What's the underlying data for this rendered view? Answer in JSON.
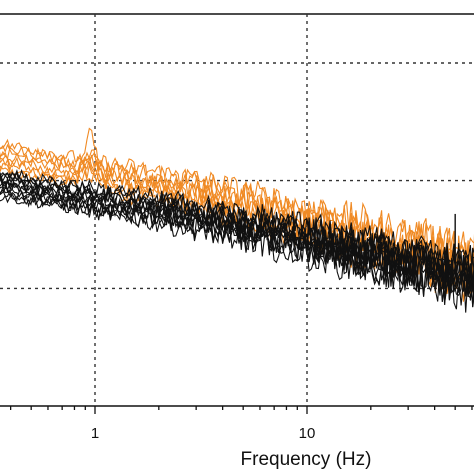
{
  "chart_data": {
    "type": "line",
    "title": "",
    "xlabel": "Frequency (Hz)",
    "ylabel": "",
    "x_scale": "log",
    "xlim": [
      0.3,
      80
    ],
    "ylim": [
      0,
      1
    ],
    "grid": true,
    "x_gridlines": [
      1,
      10
    ],
    "x_ticks": [
      {
        "value": 1,
        "label": "1"
      },
      {
        "value": 10,
        "label": "10"
      }
    ],
    "colors": {
      "orange": "#f08a24",
      "black": "#111111"
    },
    "series_groups": [
      {
        "color": "orange",
        "count": 8
      },
      {
        "color": "black",
        "count": 12
      }
    ],
    "y_gridlines": [
      0.3,
      0.575,
      0.875
    ]
  }
}
